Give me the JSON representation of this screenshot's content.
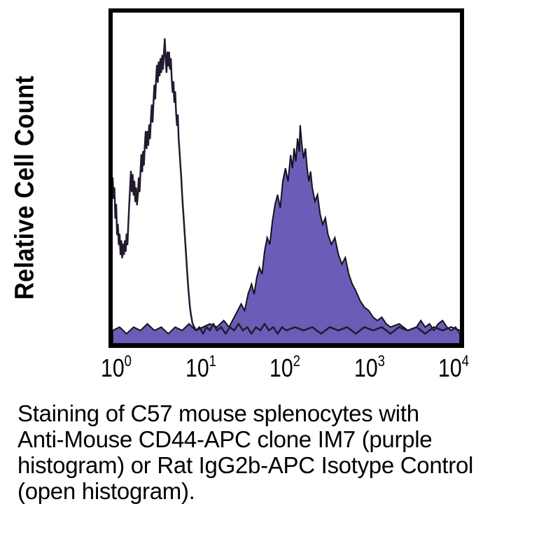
{
  "figure": {
    "y_axis_label": "Relative Cell Count",
    "x_ticks": [
      {
        "base": "10",
        "exp": "0"
      },
      {
        "base": "10",
        "exp": "1"
      },
      {
        "base": "10",
        "exp": "2"
      },
      {
        "base": "10",
        "exp": "3"
      },
      {
        "base": "10",
        "exp": "4"
      }
    ],
    "caption_lines": [
      "Staining of C57 mouse splenocytes with",
      "Anti-Mouse CD44-APC clone IM7 (purple",
      "histogram) or Rat IgG2b-APC Isotype Control",
      "(open histogram)."
    ]
  },
  "colors": {
    "purple_fill": "#6a5db8",
    "purple_outline": "#17101f",
    "open_trace": "#241a30",
    "frame": "#000000",
    "text": "#000000",
    "background": "#ffffff"
  },
  "chart_data": {
    "type": "area",
    "subtype": "flow-cytometry-histogram-overlay",
    "title": "",
    "xlabel": "",
    "ylabel": "Relative Cell Count",
    "x_scale": "log10",
    "x_range_decades": [
      0,
      4
    ],
    "x_tick_labels": [
      "10^0",
      "10^1",
      "10^2",
      "10^3",
      "10^4"
    ],
    "y_range_relative": [
      0,
      1
    ],
    "grid": false,
    "legend": "described in caption (purple = CD44-APC, open = isotype control)",
    "series": [
      {
        "name": "Anti-Mouse CD44-APC clone IM7",
        "caption_descriptor": "purple histogram",
        "style": "filled",
        "fill": "#6a5db8",
        "stroke": "#17101f",
        "stroke_width": 2,
        "peak_x_log10": 2.16,
        "peak_relative_height": 0.66,
        "points": [
          [
            0.0,
            0.04
          ],
          [
            0.08,
            0.05
          ],
          [
            0.16,
            0.03
          ],
          [
            0.24,
            0.05
          ],
          [
            0.32,
            0.04
          ],
          [
            0.4,
            0.06
          ],
          [
            0.48,
            0.04
          ],
          [
            0.56,
            0.05
          ],
          [
            0.64,
            0.03
          ],
          [
            0.72,
            0.05
          ],
          [
            0.8,
            0.04
          ],
          [
            0.88,
            0.06
          ],
          [
            0.96,
            0.04
          ],
          [
            1.04,
            0.05
          ],
          [
            1.12,
            0.06
          ],
          [
            1.2,
            0.05
          ],
          [
            1.28,
            0.07
          ],
          [
            1.34,
            0.05
          ],
          [
            1.4,
            0.08
          ],
          [
            1.44,
            0.1
          ],
          [
            1.48,
            0.12
          ],
          [
            1.52,
            0.1
          ],
          [
            1.56,
            0.15
          ],
          [
            1.6,
            0.18
          ],
          [
            1.63,
            0.15
          ],
          [
            1.66,
            0.2
          ],
          [
            1.69,
            0.23
          ],
          [
            1.72,
            0.21
          ],
          [
            1.75,
            0.28
          ],
          [
            1.78,
            0.32
          ],
          [
            1.81,
            0.3
          ],
          [
            1.84,
            0.37
          ],
          [
            1.87,
            0.42
          ],
          [
            1.9,
            0.45
          ],
          [
            1.93,
            0.41
          ],
          [
            1.96,
            0.49
          ],
          [
            1.99,
            0.53
          ],
          [
            2.02,
            0.49
          ],
          [
            2.05,
            0.57
          ],
          [
            2.07,
            0.53
          ],
          [
            2.09,
            0.59
          ],
          [
            2.11,
            0.55
          ],
          [
            2.13,
            0.62
          ],
          [
            2.15,
            0.58
          ],
          [
            2.16,
            0.66
          ],
          [
            2.18,
            0.6
          ],
          [
            2.2,
            0.56
          ],
          [
            2.22,
            0.59
          ],
          [
            2.24,
            0.53
          ],
          [
            2.26,
            0.49
          ],
          [
            2.28,
            0.52
          ],
          [
            2.3,
            0.47
          ],
          [
            2.33,
            0.43
          ],
          [
            2.36,
            0.45
          ],
          [
            2.39,
            0.39
          ],
          [
            2.42,
            0.36
          ],
          [
            2.45,
            0.38
          ],
          [
            2.48,
            0.33
          ],
          [
            2.52,
            0.3
          ],
          [
            2.56,
            0.32
          ],
          [
            2.6,
            0.27
          ],
          [
            2.64,
            0.24
          ],
          [
            2.68,
            0.26
          ],
          [
            2.72,
            0.21
          ],
          [
            2.76,
            0.18
          ],
          [
            2.8,
            0.16
          ],
          [
            2.85,
            0.13
          ],
          [
            2.9,
            0.11
          ],
          [
            2.95,
            0.1
          ],
          [
            3.0,
            0.08
          ],
          [
            3.05,
            0.07
          ],
          [
            3.1,
            0.08
          ],
          [
            3.15,
            0.06
          ],
          [
            3.2,
            0.05
          ],
          [
            3.3,
            0.06
          ],
          [
            3.4,
            0.04
          ],
          [
            3.5,
            0.05
          ],
          [
            3.55,
            0.07
          ],
          [
            3.6,
            0.05
          ],
          [
            3.65,
            0.06
          ],
          [
            3.7,
            0.04
          ],
          [
            3.75,
            0.06
          ],
          [
            3.8,
            0.07
          ],
          [
            3.85,
            0.05
          ],
          [
            3.9,
            0.04
          ],
          [
            3.95,
            0.05
          ],
          [
            4.0,
            0.03
          ]
        ]
      },
      {
        "name": "Rat IgG2b-APC Isotype Control",
        "caption_descriptor": "open histogram",
        "style": "open",
        "fill": "none",
        "stroke": "#241a30",
        "stroke_width": 2.5,
        "peak_x_log10": 0.6,
        "peak_relative_height": 0.92,
        "points": [
          [
            0.0,
            0.5
          ],
          [
            0.01,
            0.44
          ],
          [
            0.02,
            0.47
          ],
          [
            0.03,
            0.38
          ],
          [
            0.04,
            0.42
          ],
          [
            0.05,
            0.33
          ],
          [
            0.06,
            0.36
          ],
          [
            0.07,
            0.3
          ],
          [
            0.08,
            0.33
          ],
          [
            0.09,
            0.27
          ],
          [
            0.1,
            0.31
          ],
          [
            0.11,
            0.26
          ],
          [
            0.12,
            0.3
          ],
          [
            0.13,
            0.27
          ],
          [
            0.14,
            0.31
          ],
          [
            0.15,
            0.28
          ],
          [
            0.16,
            0.33
          ],
          [
            0.17,
            0.3
          ],
          [
            0.18,
            0.36
          ],
          [
            0.19,
            0.42
          ],
          [
            0.2,
            0.47
          ],
          [
            0.21,
            0.52
          ],
          [
            0.22,
            0.46
          ],
          [
            0.23,
            0.51
          ],
          [
            0.24,
            0.45
          ],
          [
            0.25,
            0.49
          ],
          [
            0.26,
            0.43
          ],
          [
            0.27,
            0.47
          ],
          [
            0.28,
            0.42
          ],
          [
            0.29,
            0.45
          ],
          [
            0.3,
            0.5
          ],
          [
            0.31,
            0.46
          ],
          [
            0.32,
            0.52
          ],
          [
            0.33,
            0.57
          ],
          [
            0.34,
            0.52
          ],
          [
            0.35,
            0.58
          ],
          [
            0.36,
            0.54
          ],
          [
            0.37,
            0.6
          ],
          [
            0.38,
            0.64
          ],
          [
            0.39,
            0.59
          ],
          [
            0.4,
            0.64
          ],
          [
            0.41,
            0.6
          ],
          [
            0.42,
            0.66
          ],
          [
            0.43,
            0.62
          ],
          [
            0.44,
            0.68
          ],
          [
            0.45,
            0.72
          ],
          [
            0.46,
            0.67
          ],
          [
            0.47,
            0.73
          ],
          [
            0.48,
            0.78
          ],
          [
            0.49,
            0.74
          ],
          [
            0.5,
            0.8
          ],
          [
            0.51,
            0.84
          ],
          [
            0.52,
            0.79
          ],
          [
            0.53,
            0.85
          ],
          [
            0.54,
            0.81
          ],
          [
            0.55,
            0.86
          ],
          [
            0.56,
            0.82
          ],
          [
            0.57,
            0.87
          ],
          [
            0.58,
            0.83
          ],
          [
            0.59,
            0.88
          ],
          [
            0.6,
            0.92
          ],
          [
            0.61,
            0.86
          ],
          [
            0.62,
            0.82
          ],
          [
            0.63,
            0.88
          ],
          [
            0.64,
            0.84
          ],
          [
            0.65,
            0.88
          ],
          [
            0.66,
            0.83
          ],
          [
            0.67,
            0.86
          ],
          [
            0.68,
            0.8
          ],
          [
            0.69,
            0.76
          ],
          [
            0.7,
            0.79
          ],
          [
            0.71,
            0.73
          ],
          [
            0.72,
            0.76
          ],
          [
            0.73,
            0.7
          ],
          [
            0.74,
            0.66
          ],
          [
            0.75,
            0.69
          ],
          [
            0.76,
            0.62
          ],
          [
            0.77,
            0.58
          ],
          [
            0.78,
            0.54
          ],
          [
            0.79,
            0.5
          ],
          [
            0.8,
            0.45
          ],
          [
            0.81,
            0.41
          ],
          [
            0.82,
            0.37
          ],
          [
            0.83,
            0.33
          ],
          [
            0.84,
            0.29
          ],
          [
            0.85,
            0.25
          ],
          [
            0.86,
            0.21
          ],
          [
            0.87,
            0.17
          ],
          [
            0.88,
            0.14
          ],
          [
            0.89,
            0.11
          ],
          [
            0.9,
            0.09
          ],
          [
            0.92,
            0.06
          ],
          [
            0.94,
            0.05
          ],
          [
            0.96,
            0.04
          ],
          [
            1.0,
            0.05
          ],
          [
            1.04,
            0.03
          ],
          [
            1.08,
            0.05
          ],
          [
            1.12,
            0.04
          ],
          [
            1.16,
            0.06
          ],
          [
            1.2,
            0.04
          ],
          [
            1.25,
            0.05
          ],
          [
            1.3,
            0.03
          ],
          [
            1.35,
            0.05
          ],
          [
            1.4,
            0.04
          ],
          [
            1.45,
            0.06
          ],
          [
            1.5,
            0.04
          ],
          [
            1.55,
            0.05
          ],
          [
            1.6,
            0.03
          ],
          [
            1.65,
            0.05
          ],
          [
            1.7,
            0.04
          ],
          [
            1.75,
            0.06
          ],
          [
            1.8,
            0.04
          ],
          [
            1.85,
            0.05
          ],
          [
            1.9,
            0.03
          ],
          [
            1.95,
            0.05
          ],
          [
            2.0,
            0.04
          ],
          [
            2.1,
            0.05
          ],
          [
            2.2,
            0.04
          ],
          [
            2.3,
            0.05
          ],
          [
            2.4,
            0.03
          ],
          [
            2.5,
            0.05
          ],
          [
            2.6,
            0.04
          ],
          [
            2.7,
            0.05
          ],
          [
            2.8,
            0.03
          ],
          [
            2.9,
            0.05
          ],
          [
            3.0,
            0.04
          ],
          [
            3.1,
            0.05
          ],
          [
            3.2,
            0.03
          ],
          [
            3.3,
            0.05
          ],
          [
            3.4,
            0.04
          ],
          [
            3.5,
            0.05
          ],
          [
            3.6,
            0.03
          ],
          [
            3.7,
            0.05
          ],
          [
            3.8,
            0.04
          ],
          [
            3.9,
            0.05
          ],
          [
            4.0,
            0.04
          ]
        ]
      }
    ]
  }
}
